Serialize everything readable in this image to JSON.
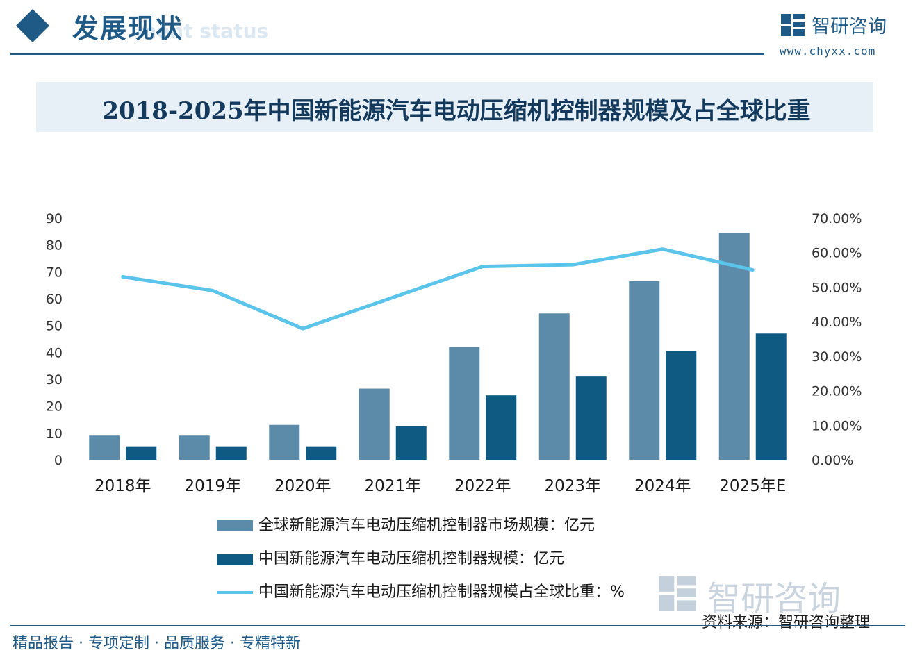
{
  "header": {
    "section_title": "发展现状",
    "section_subtitle": "ment status",
    "brand_name": "智研咨询",
    "brand_url": "www.chyxx.com"
  },
  "chart_data": {
    "type": "bar",
    "title": "2018-2025年中国新能源汽车电动压缩机控制器规模及占全球比重",
    "categories": [
      "2018年",
      "2019年",
      "2020年",
      "2021年",
      "2022年",
      "2023年",
      "2024年",
      "2025年E"
    ],
    "series": [
      {
        "name": "全球新能源汽车电动压缩机控制器市场规模：亿元",
        "type": "bar",
        "axis": "left",
        "color": "#5b8ba8",
        "values": [
          9,
          9,
          13,
          26.5,
          42,
          54.5,
          66.5,
          84.5
        ]
      },
      {
        "name": "中国新能源汽车电动压缩机控制器规模：亿元",
        "type": "bar",
        "axis": "left",
        "color": "#0f5a82",
        "values": [
          5,
          5,
          5,
          12.5,
          24,
          31,
          40.5,
          47
        ]
      },
      {
        "name": "中国新能源汽车电动压缩机控制器规模占全球比重：%",
        "type": "line",
        "axis": "right",
        "color": "#5bc4ea",
        "values": [
          53,
          49,
          38,
          47,
          56,
          56.5,
          61,
          55
        ]
      }
    ],
    "y_left": {
      "min": 0,
      "max": 90,
      "ticks": [
        "0",
        "10",
        "20",
        "30",
        "40",
        "50",
        "60",
        "70",
        "80",
        "90"
      ]
    },
    "y_right": {
      "min": 0,
      "max": 70,
      "ticks": [
        "0.00%",
        "10.00%",
        "20.00%",
        "30.00%",
        "40.00%",
        "50.00%",
        "60.00%",
        "70.00%"
      ]
    },
    "grid": false,
    "legend_position": "bottom"
  },
  "footer": {
    "slogan": "精品报告 · 专项定制 · 品质服务 · 专精特新",
    "source": "资料来源：智研咨询整理",
    "watermark_name": "智研咨询"
  }
}
